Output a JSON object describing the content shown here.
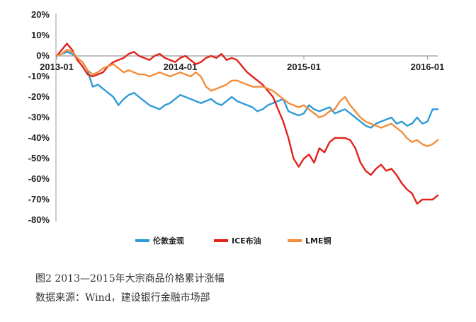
{
  "caption": {
    "title": "图2 2013—2015年大宗商品价格累计涨幅",
    "source": "数据来源：Wind，建设银行金融市场部"
  },
  "chart_data": {
    "type": "line",
    "title": "",
    "xlabel": "",
    "ylabel": "",
    "ylim": [
      -80,
      20
    ],
    "yticks": [
      20,
      10,
      0,
      -10,
      -20,
      -30,
      -40,
      -50,
      -60,
      -70,
      -80
    ],
    "ytick_labels": [
      "20%",
      "10%",
      "0%",
      "-10%",
      "-20%",
      "-30%",
      "-40%",
      "-50%",
      "-60%",
      "-70%",
      "-80%"
    ],
    "xlim": [
      0,
      37
    ],
    "xticks": [
      0,
      12,
      24,
      36
    ],
    "xtick_labels": [
      "2013-01",
      "2014-01",
      "2015-01",
      "2016-01"
    ],
    "legend_position": "bottom",
    "series": [
      {
        "name": "伦敦金现",
        "color": "#2E9BD6",
        "x": [
          0,
          0.5,
          1,
          1.5,
          2,
          2.5,
          3,
          3.5,
          4,
          4.5,
          5,
          5.5,
          6,
          6.5,
          7,
          7.5,
          8,
          8.5,
          9,
          9.5,
          10,
          10.5,
          11,
          11.5,
          12,
          12.5,
          13,
          13.5,
          14,
          14.5,
          15,
          15.5,
          16,
          16.5,
          17,
          17.5,
          18,
          18.5,
          19,
          19.5,
          20,
          20.5,
          21,
          21.5,
          22,
          22.5,
          23,
          23.5,
          24,
          24.5,
          25,
          25.5,
          26,
          26.5,
          27,
          27.5,
          28,
          28.5,
          29,
          29.5,
          30,
          30.5,
          31,
          31.5,
          32,
          32.5,
          33,
          33.5,
          34,
          34.5,
          35,
          35.5,
          36,
          36.5,
          37
        ],
        "values": [
          0,
          1,
          2,
          1,
          -1,
          -3,
          -7,
          -15,
          -14,
          -16,
          -18,
          -20,
          -24,
          -21,
          -19,
          -18,
          -20,
          -22,
          -24,
          -25,
          -26,
          -24,
          -23,
          -21,
          -19,
          -20,
          -21,
          -22,
          -23,
          -22,
          -21,
          -23,
          -24,
          -22,
          -20,
          -22,
          -23,
          -24,
          -25,
          -27,
          -26,
          -24,
          -23,
          -22,
          -21,
          -27,
          -28,
          -29,
          -28,
          -24,
          -26,
          -27,
          -26,
          -25,
          -28,
          -27,
          -26,
          -28,
          -30,
          -32,
          -34,
          -35,
          -33,
          -32,
          -31,
          -30,
          -33,
          -32,
          -34,
          -33,
          -30,
          -33,
          -32,
          -26,
          -26
        ]
      },
      {
        "name": "ICE布油",
        "color": "#E0231B",
        "x": [
          0,
          0.5,
          1,
          1.5,
          2,
          2.5,
          3,
          3.5,
          4,
          4.5,
          5,
          5.5,
          6,
          6.5,
          7,
          7.5,
          8,
          8.5,
          9,
          9.5,
          10,
          10.5,
          11,
          11.5,
          12,
          12.5,
          13,
          13.5,
          14,
          14.5,
          15,
          15.5,
          16,
          16.5,
          17,
          17.5,
          18,
          18.5,
          19,
          19.5,
          20,
          20.5,
          21,
          21.5,
          22,
          22.5,
          23,
          23.5,
          24,
          24.5,
          25,
          25.5,
          26,
          26.5,
          27,
          27.5,
          28,
          28.5,
          29,
          29.5,
          30,
          30.5,
          31,
          31.5,
          32,
          32.5,
          33,
          33.5,
          34,
          34.5,
          35,
          35.5,
          36,
          36.5,
          37
        ],
        "values": [
          0,
          3,
          6,
          3,
          -2,
          -5,
          -9,
          -10,
          -9,
          -8,
          -5,
          -3,
          -2,
          -1,
          1,
          2,
          0,
          -1,
          -2,
          0,
          1,
          -1,
          -2,
          -3,
          -1,
          0,
          -2,
          -4,
          -3,
          -1,
          0,
          -1,
          1,
          -2,
          -1,
          -2,
          -5,
          -8,
          -10,
          -12,
          -14,
          -17,
          -20,
          -26,
          -32,
          -40,
          -50,
          -54,
          -50,
          -48,
          -52,
          -45,
          -47,
          -42,
          -40,
          -40,
          -40,
          -41,
          -45,
          -52,
          -56,
          -58,
          -55,
          -53,
          -56,
          -55,
          -58,
          -62,
          -65,
          -67,
          -72,
          -70,
          -70,
          -70,
          -68
        ]
      },
      {
        "name": "LME铜",
        "color": "#F28E3C",
        "x": [
          0,
          0.5,
          1,
          1.5,
          2,
          2.5,
          3,
          3.5,
          4,
          4.5,
          5,
          5.5,
          6,
          6.5,
          7,
          7.5,
          8,
          8.5,
          9,
          9.5,
          10,
          10.5,
          11,
          11.5,
          12,
          12.5,
          13,
          13.5,
          14,
          14.5,
          15,
          15.5,
          16,
          16.5,
          17,
          17.5,
          18,
          18.5,
          19,
          19.5,
          20,
          20.5,
          21,
          21.5,
          22,
          22.5,
          23,
          23.5,
          24,
          24.5,
          25,
          25.5,
          26,
          26.5,
          27,
          27.5,
          28,
          28.5,
          29,
          29.5,
          30,
          30.5,
          31,
          31.5,
          32,
          32.5,
          33,
          33.5,
          34,
          34.5,
          35,
          35.5,
          36,
          36.5,
          37
        ],
        "values": [
          0,
          1,
          3,
          2,
          -1,
          -3,
          -7,
          -9,
          -8,
          -6,
          -5,
          -4,
          -6,
          -8,
          -7,
          -8,
          -9,
          -9,
          -10,
          -9,
          -8,
          -9,
          -10,
          -9,
          -8,
          -9,
          -10,
          -8,
          -10,
          -15,
          -17,
          -16,
          -15,
          -14,
          -12,
          -12,
          -13,
          -14,
          -15,
          -15,
          -15,
          -16,
          -17,
          -19,
          -21,
          -23,
          -24,
          -25,
          -24,
          -26,
          -28,
          -30,
          -29,
          -27,
          -26,
          -22,
          -20,
          -24,
          -27,
          -30,
          -32,
          -33,
          -34,
          -35,
          -34,
          -33,
          -35,
          -37,
          -40,
          -42,
          -41,
          -43,
          -44,
          -43,
          -41
        ]
      }
    ]
  }
}
